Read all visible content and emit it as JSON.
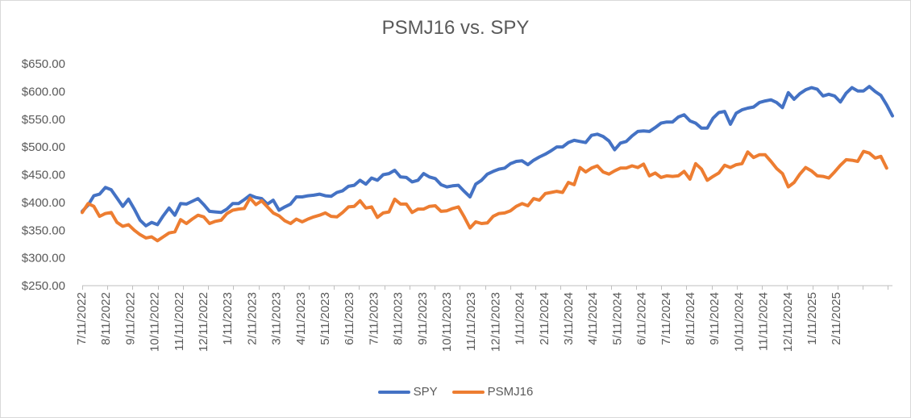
{
  "chart_data": {
    "type": "line",
    "title": "PSMJ16 vs. SPY",
    "xlabel": "",
    "ylabel": "",
    "ylim": [
      250,
      650
    ],
    "yticks": [
      250,
      300,
      350,
      400,
      450,
      500,
      550,
      600,
      650
    ],
    "ytick_labels": [
      "$250.00",
      "$300.00",
      "$350.00",
      "$400.00",
      "$450.00",
      "$500.00",
      "$550.00",
      "$600.00",
      "$650.00"
    ],
    "xtick_labels": [
      "7/11/2022",
      "8/11/2022",
      "9/11/2022",
      "10/11/2022",
      "11/11/2022",
      "12/11/2022",
      "1/11/2023",
      "2/11/2023",
      "3/11/2023",
      "4/11/2023",
      "5/11/2023",
      "6/11/2023",
      "7/11/2023",
      "8/11/2023",
      "9/11/2023",
      "10/11/2023",
      "11/11/2023",
      "12/11/2023",
      "1/11/2024",
      "2/11/2024",
      "3/11/2024",
      "4/11/2024",
      "5/11/2024",
      "6/11/2024",
      "7/11/2024",
      "8/11/2024",
      "9/11/2024",
      "10/11/2024",
      "11/11/2024",
      "12/11/2024",
      "1/11/2025",
      "2/11/2025"
    ],
    "grid": false,
    "legend_position": "bottom",
    "colors": {
      "SPY": "#4472c4",
      "PSMJ16": "#ed7d31"
    },
    "series": [
      {
        "name": "SPY",
        "values": [
          384,
          395,
          412,
          415,
          427,
          423,
          408,
          393,
          406,
          388,
          368,
          358,
          364,
          360,
          376,
          390,
          377,
          398,
          397,
          402,
          407,
          396,
          384,
          383,
          382,
          388,
          398,
          398,
          405,
          413,
          409,
          407,
          397,
          404,
          386,
          392,
          397,
          410,
          410,
          412,
          413,
          415,
          412,
          411,
          418,
          421,
          429,
          431,
          440,
          433,
          444,
          440,
          450,
          452,
          458,
          446,
          445,
          437,
          440,
          452,
          446,
          443,
          432,
          428,
          430,
          431,
          420,
          410,
          433,
          440,
          451,
          456,
          460,
          462,
          470,
          474,
          475,
          468,
          476,
          482,
          487,
          493,
          500,
          500,
          508,
          512,
          510,
          508,
          521,
          523,
          519,
          511,
          495,
          507,
          510,
          520,
          528,
          529,
          528,
          535,
          543,
          545,
          545,
          554,
          558,
          547,
          543,
          534,
          534,
          552,
          562,
          564,
          541,
          561,
          567,
          570,
          572,
          580,
          583,
          585,
          580,
          571,
          598,
          586,
          596,
          603,
          607,
          604,
          592,
          595,
          592,
          581,
          597,
          607,
          601,
          601,
          609,
          600,
          593,
          576,
          556
        ]
      },
      {
        "name": "PSMJ16",
        "values": [
          382,
          398,
          393,
          375,
          380,
          382,
          364,
          357,
          360,
          350,
          342,
          336,
          338,
          331,
          338,
          345,
          347,
          369,
          362,
          370,
          377,
          374,
          362,
          366,
          368,
          380,
          386,
          388,
          389,
          408,
          396,
          403,
          392,
          381,
          376,
          367,
          362,
          370,
          365,
          370,
          374,
          377,
          381,
          375,
          374,
          382,
          392,
          393,
          403,
          390,
          392,
          373,
          381,
          383,
          406,
          397,
          397,
          382,
          388,
          388,
          393,
          394,
          384,
          385,
          389,
          392,
          374,
          354,
          365,
          362,
          363,
          375,
          380,
          381,
          385,
          393,
          398,
          394,
          407,
          404,
          416,
          418,
          420,
          418,
          436,
          432,
          463,
          455,
          462,
          466,
          455,
          451,
          457,
          462,
          462,
          466,
          463,
          469,
          448,
          453,
          445,
          448,
          447,
          448,
          456,
          442,
          470,
          460,
          440,
          447,
          453,
          467,
          463,
          468,
          470,
          491,
          481,
          486,
          486,
          474,
          461,
          452,
          428,
          436,
          451,
          463,
          457,
          448,
          447,
          444,
          455,
          467,
          477,
          476,
          474,
          492,
          489,
          480,
          483,
          462
        ]
      }
    ]
  }
}
